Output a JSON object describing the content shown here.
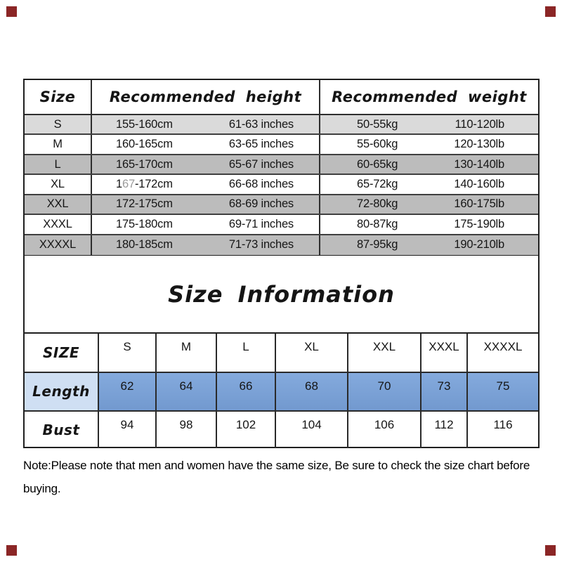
{
  "corner_markers": {
    "color": "#8b2626"
  },
  "size_table": {
    "headers": {
      "size": "Size",
      "height": "Recommended height",
      "weight": "Recommended weight"
    },
    "rows": [
      {
        "size": "S",
        "cm": [
          {
            "t": "155-160cm"
          }
        ],
        "inch": "61-63 inches",
        "kg": "50-55kg",
        "lb": "110-120lb",
        "shade": "light"
      },
      {
        "size": "M",
        "cm": [
          {
            "t": "160-165cm"
          }
        ],
        "inch": "63-65 inches",
        "kg": "55-60kg",
        "lb": "120-130lb",
        "shade": "none"
      },
      {
        "size": "L",
        "cm": [
          {
            "t": "165-170cm"
          }
        ],
        "inch": "65-67 inches",
        "kg": "60-65kg",
        "lb": "130-140lb",
        "shade": "dark"
      },
      {
        "size": "XL",
        "cm": [
          {
            "t": "1"
          },
          {
            "t": "67",
            "faded": true
          },
          {
            "t": "-172cm"
          }
        ],
        "inch": "66-68 inches",
        "kg": "65-72kg",
        "lb": "140-160lb",
        "shade": "none"
      },
      {
        "size": "XXL",
        "cm": [
          {
            "t": "172-175cm"
          }
        ],
        "inch": "68-69 inches",
        "kg": "72-80kg",
        "lb": "160-175lb",
        "shade": "dark"
      },
      {
        "size": "XXXL",
        "cm": [
          {
            "t": "175-180cm"
          }
        ],
        "inch": "69-71 inches",
        "kg": "80-87kg",
        "lb": "175-190lb",
        "shade": "none"
      },
      {
        "size": "XXXXL",
        "cm": [
          {
            "t": "180-185cm"
          }
        ],
        "inch": "71-73 inches",
        "kg": "87-95kg",
        "lb": "190-210lb",
        "shade": "dark"
      }
    ]
  },
  "section_title": "Size Information",
  "measurement_table": {
    "corner_label": "SIZE",
    "sizes": [
      "S",
      "M",
      "L",
      "XL",
      "XXL",
      "XXXL",
      "XXXXL"
    ],
    "rows": [
      {
        "label": "Length",
        "values": [
          "62",
          "64",
          "66",
          "68",
          "70",
          "73",
          "75"
        ],
        "highlight": true
      },
      {
        "label": "Bust",
        "values": [
          "94",
          "98",
          "102",
          "104",
          "106",
          "112",
          "116"
        ],
        "highlight": false
      }
    ]
  },
  "note": "Note:Please note that men and women have the same size, Be sure to check the size chart before buying.",
  "colors": {
    "row_light_gray": "#dadada",
    "row_dark_gray": "#bcbcbc",
    "highlight_blue": "#7aa1d6",
    "highlight_label_blue": "#cfdff3",
    "corner_red": "#8b2626"
  }
}
